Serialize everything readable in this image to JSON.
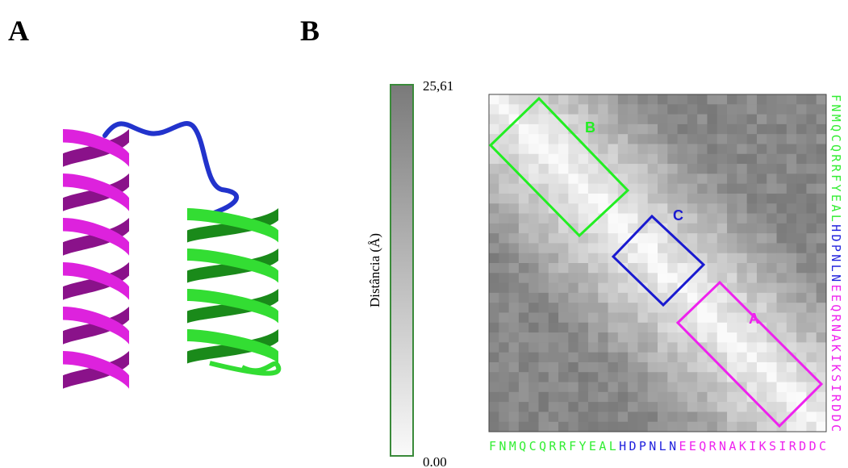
{
  "panels": {
    "a": "A",
    "b": "B"
  },
  "colorbar": {
    "label": "Distância (Å)",
    "max_label": "25,61",
    "min_label": "0.00"
  },
  "sequence": {
    "segments": [
      {
        "text": "FNMQCQRRFYEAL",
        "color": "#33ee33"
      },
      {
        "text": "HDPNLN",
        "color": "#2222dd"
      },
      {
        "text": "EEQRNAKIKSIRDDC",
        "color": "#ee22ee"
      }
    ]
  },
  "regions": [
    {
      "label": "B",
      "color": "#22ee22"
    },
    {
      "label": "C",
      "color": "#1a1ad0"
    },
    {
      "label": "A",
      "color": "#ee22ee"
    }
  ]
}
